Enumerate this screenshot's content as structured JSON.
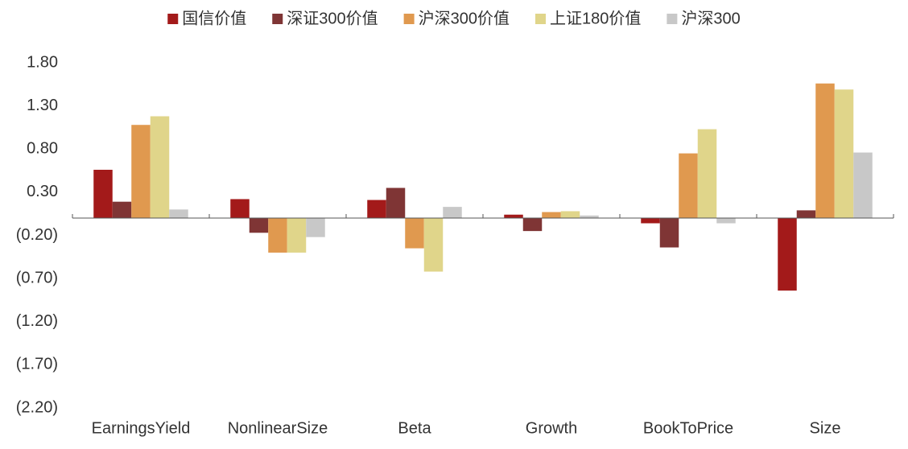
{
  "chart_data": {
    "type": "bar",
    "categories": [
      "EarningsYield",
      "NonlinearSize",
      "Beta",
      "Growth",
      "BookToPrice",
      "Size"
    ],
    "series": [
      {
        "name": "国信价值",
        "color": "#a31a1a",
        "values": [
          0.56,
          0.22,
          0.21,
          0.04,
          -0.06,
          -0.84
        ]
      },
      {
        "name": "深证300价值",
        "color": "#7f3535",
        "values": [
          0.19,
          -0.17,
          0.35,
          -0.15,
          -0.34,
          0.09
        ]
      },
      {
        "name": "沪深300价值",
        "color": "#e0994f",
        "values": [
          1.08,
          -0.4,
          -0.35,
          0.07,
          0.75,
          1.56
        ]
      },
      {
        "name": "上证180价值",
        "color": "#e0d58a",
        "values": [
          1.18,
          -0.4,
          -0.62,
          0.08,
          1.03,
          1.49
        ]
      },
      {
        "name": "沪深300",
        "color": "#c8c8c8",
        "values": [
          0.1,
          -0.22,
          0.13,
          0.03,
          -0.06,
          0.76
        ]
      }
    ],
    "ylim": [
      -2.2,
      1.8
    ],
    "yticks": [
      {
        "value": 1.8,
        "label": "1.80"
      },
      {
        "value": 1.3,
        "label": "1.30"
      },
      {
        "value": 0.8,
        "label": "0.80"
      },
      {
        "value": 0.3,
        "label": "0.30"
      },
      {
        "value": -0.2,
        "label": "(0.20)"
      },
      {
        "value": -0.7,
        "label": "(0.70)"
      },
      {
        "value": -1.2,
        "label": "(1.20)"
      },
      {
        "value": -1.7,
        "label": "(1.70)"
      },
      {
        "value": -2.2,
        "label": "(2.20)"
      }
    ],
    "grid": false,
    "legend": "top"
  }
}
